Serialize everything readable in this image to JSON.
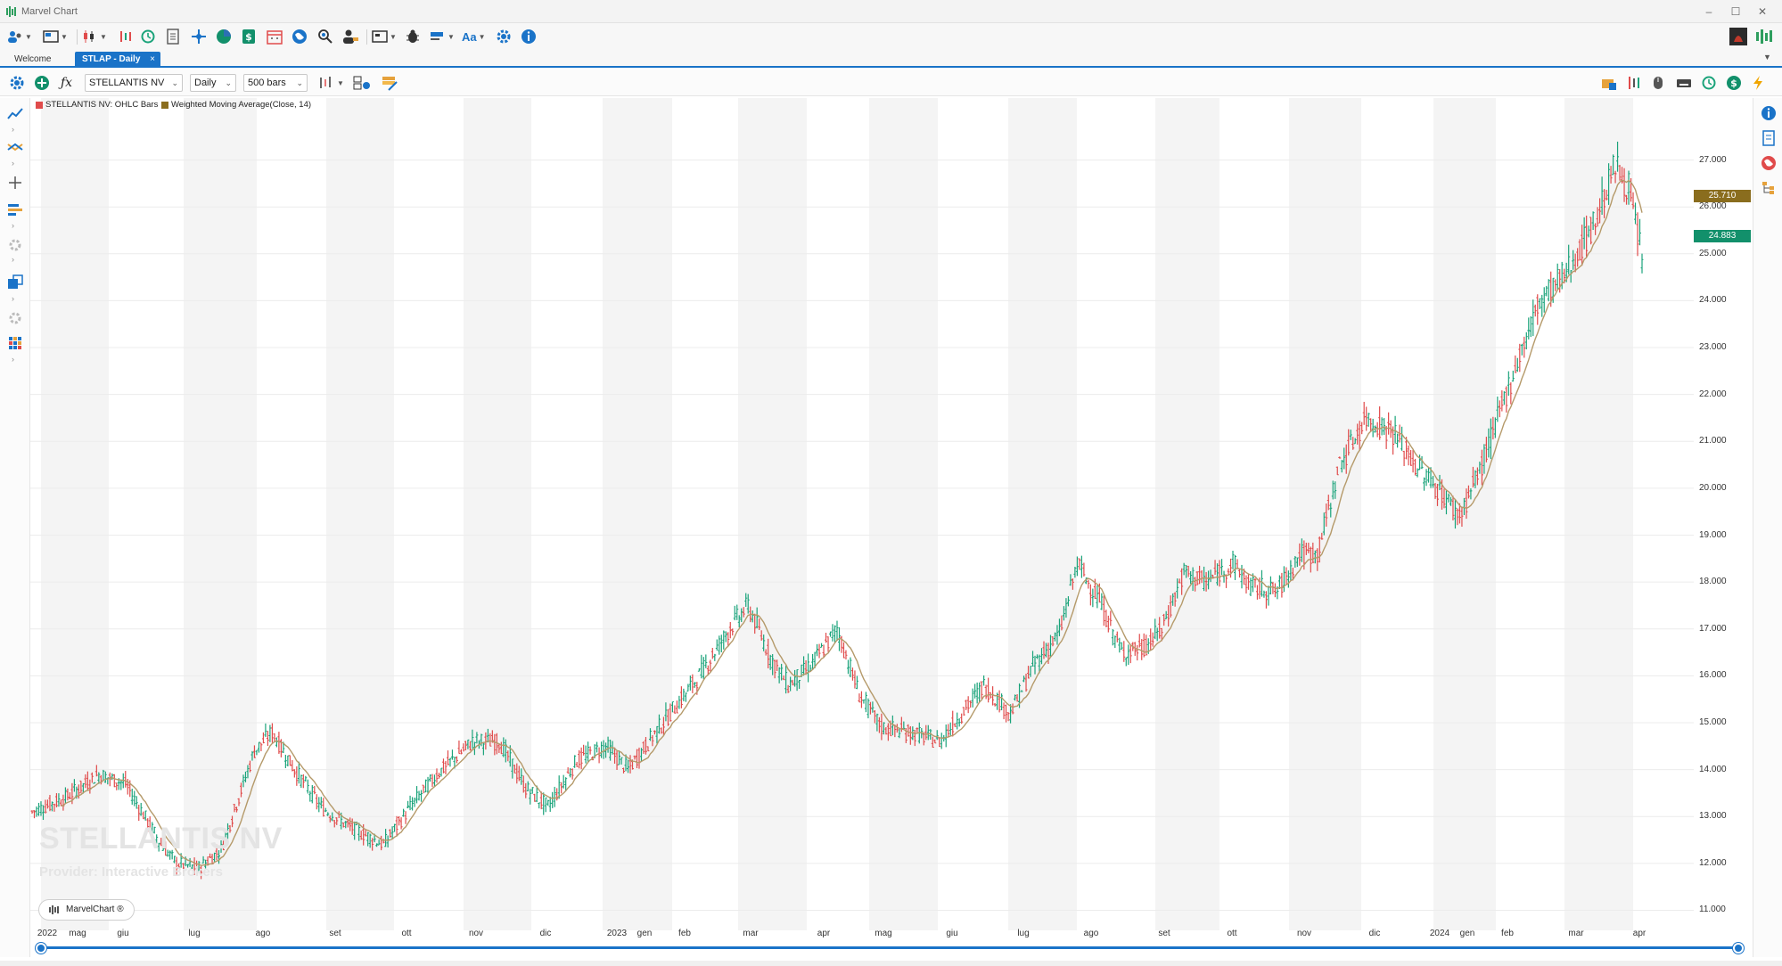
{
  "window": {
    "title": "Marvel Chart",
    "minimize": "–",
    "maximize": "☐",
    "close": "✕"
  },
  "tabs": [
    {
      "label": "Welcome",
      "active": false
    },
    {
      "label": "STLAP - Daily",
      "active": true,
      "close": "×"
    }
  ],
  "chart_toolbar": {
    "symbol": "STELLANTIS NV",
    "timeframe": "Daily",
    "bars": "500 bars",
    "formula_icon": "ƒx"
  },
  "toolbar": {
    "font_label": "Aa"
  },
  "legend": [
    {
      "label": "STELLANTIS NV: OHLC Bars",
      "color": "#e04b4b"
    },
    {
      "label": "Weighted Moving Average(Close, 14)",
      "color": "#8a6d1e"
    }
  ],
  "watermark": {
    "symbol": "STELLANTIS NV",
    "provider": "Provider: Interactive Brokers"
  },
  "badge": {
    "label": "MarvelChart ®"
  },
  "price_tags": {
    "wma": "25.710",
    "last": "24.883"
  },
  "colors": {
    "accent": "#1a73c8",
    "up": "#1aa37a",
    "down": "#e04b4b",
    "wma": "#b59a6a",
    "wma_tag": "#8a6d1e",
    "last_tag": "#12906b"
  },
  "chart_data": {
    "type": "ohlc",
    "series": [
      {
        "name": "STELLANTIS NV: OHLC Bars"
      },
      {
        "name": "Weighted Moving Average(Close, 14)"
      }
    ],
    "ylim": [
      10.8,
      27.6
    ],
    "y_ticks": [
      "11.000",
      "12.000",
      "13.000",
      "14.000",
      "15.000",
      "16.000",
      "17.000",
      "18.000",
      "19.000",
      "20.000",
      "21.000",
      "22.000",
      "23.000",
      "24.000",
      "25.000",
      "26.000",
      "27.000"
    ],
    "x_labels": [
      "2022",
      "mag",
      "giu",
      "lug",
      "ago",
      "set",
      "ott",
      "nov",
      "dic",
      "2023",
      "gen",
      "feb",
      "mar",
      "apr",
      "mag",
      "giu",
      "lug",
      "ago",
      "set",
      "ott",
      "nov",
      "dic",
      "2024",
      "gen",
      "feb",
      "mar",
      "apr"
    ],
    "price_anchors": [
      [
        0,
        13.1
      ],
      [
        15,
        13.4
      ],
      [
        30,
        13.9
      ],
      [
        42,
        13.7
      ],
      [
        58,
        12.4
      ],
      [
        65,
        12.0
      ],
      [
        75,
        11.9
      ],
      [
        85,
        12.3
      ],
      [
        100,
        14.4
      ],
      [
        108,
        14.8
      ],
      [
        118,
        14.0
      ],
      [
        130,
        13.2
      ],
      [
        142,
        12.8
      ],
      [
        158,
        12.4
      ],
      [
        170,
        13.2
      ],
      [
        182,
        13.9
      ],
      [
        198,
        14.6
      ],
      [
        210,
        14.6
      ],
      [
        222,
        13.6
      ],
      [
        232,
        13.2
      ],
      [
        245,
        14.2
      ],
      [
        258,
        14.5
      ],
      [
        268,
        14.0
      ],
      [
        282,
        14.9
      ],
      [
        300,
        16.0
      ],
      [
        315,
        17.1
      ],
      [
        322,
        17.5
      ],
      [
        332,
        16.4
      ],
      [
        340,
        15.8
      ],
      [
        350,
        16.2
      ],
      [
        362,
        17.0
      ],
      [
        372,
        15.6
      ],
      [
        382,
        14.9
      ],
      [
        395,
        14.8
      ],
      [
        408,
        14.6
      ],
      [
        418,
        15.2
      ],
      [
        428,
        15.8
      ],
      [
        440,
        15.2
      ],
      [
        450,
        16.2
      ],
      [
        462,
        16.9
      ],
      [
        470,
        18.4
      ],
      [
        480,
        17.6
      ],
      [
        490,
        16.5
      ],
      [
        500,
        16.6
      ],
      [
        508,
        17.0
      ],
      [
        518,
        18.2
      ],
      [
        528,
        18.0
      ],
      [
        540,
        18.4
      ],
      [
        548,
        17.9
      ],
      [
        560,
        17.8
      ],
      [
        570,
        18.6
      ],
      [
        578,
        18.6
      ],
      [
        588,
        20.5
      ],
      [
        600,
        21.5
      ],
      [
        612,
        21.2
      ],
      [
        622,
        20.5
      ],
      [
        632,
        20.0
      ],
      [
        642,
        19.4
      ],
      [
        652,
        20.5
      ],
      [
        665,
        22.3
      ],
      [
        678,
        24.0
      ],
      [
        690,
        24.6
      ],
      [
        703,
        25.7
      ],
      [
        712,
        26.9
      ],
      [
        718,
        26.4
      ],
      [
        724,
        24.9
      ]
    ]
  }
}
